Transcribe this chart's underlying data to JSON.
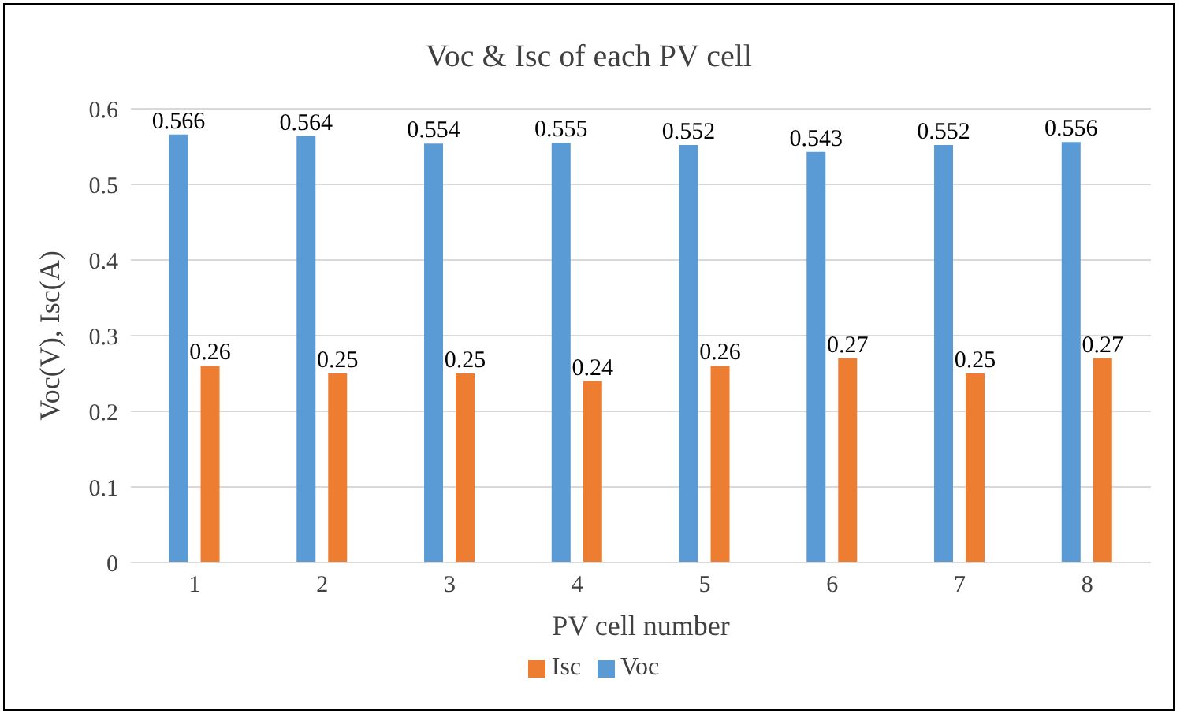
{
  "chart_data": {
    "type": "bar",
    "title": "Voc & Isc of each PV cell",
    "xlabel": "PV cell number",
    "ylabel": "Voc(V), Isc(A)",
    "categories": [
      "1",
      "2",
      "3",
      "4",
      "5",
      "6",
      "7",
      "8"
    ],
    "series": [
      {
        "name": "Voc",
        "color": "#5b9bd5",
        "values": [
          0.566,
          0.564,
          0.554,
          0.555,
          0.552,
          0.543,
          0.552,
          0.556
        ]
      },
      {
        "name": "Isc",
        "color": "#ed7d31",
        "values": [
          0.26,
          0.25,
          0.25,
          0.24,
          0.26,
          0.27,
          0.25,
          0.27
        ]
      }
    ],
    "ylim": [
      0,
      0.6
    ],
    "yticks": [
      0,
      0.1,
      0.2,
      0.3,
      0.4,
      0.5,
      0.6
    ],
    "grid": "y",
    "legend": "bottom",
    "data_labels": true
  }
}
